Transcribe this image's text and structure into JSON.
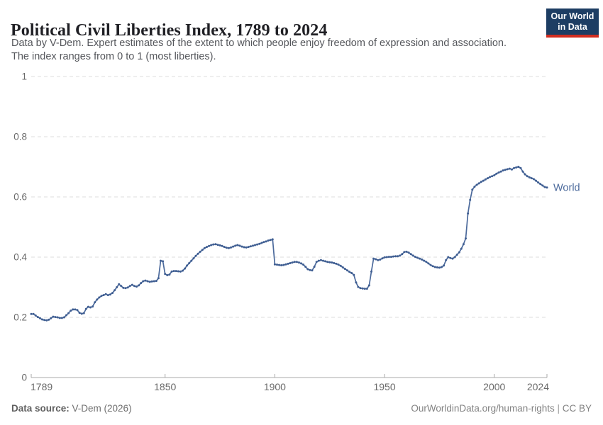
{
  "header": {
    "title": "Political Civil Liberties Index, 1789 to 2024",
    "subtitle_lines": [
      "Data by V-Dem. Expert estimates of the extent to which people enjoy freedom of expression and association.",
      "The index ranges from 0 to 1 (most liberties)."
    ]
  },
  "logo": {
    "line1": "Our World",
    "line2": "in Data",
    "bg_color": "#1d3d63",
    "stripe_color": "#d12d20"
  },
  "footer": {
    "source_label": "Data source:",
    "source_value": " V-Dem (2026)",
    "url": "OurWorldinData.org/human-rights",
    "separator": " | ",
    "license": "CC BY"
  },
  "chart_data": {
    "type": "line",
    "title": "Political Civil Liberties Index, 1789 to 2024",
    "xlabel": "",
    "ylabel": "",
    "grid": "horizontal-dashed",
    "legend_position": "end-of-line",
    "x": {
      "min": 1789,
      "max": 2024,
      "ticks": [
        1789,
        1850,
        1900,
        1950,
        2000,
        2024
      ]
    },
    "y": {
      "min": 0,
      "max": 1,
      "ticks": [
        0,
        0.2,
        0.4,
        0.6,
        0.8,
        1
      ],
      "tick_labels": [
        "0",
        "0.2",
        "0.4",
        "0.6",
        "0.8",
        "1"
      ]
    },
    "series": [
      {
        "name": "World",
        "color": "#4C6A9C",
        "marker_color": "#3F5E92",
        "start_year": 1789,
        "end_year": 2024,
        "values": [
          0.211,
          0.211,
          0.206,
          0.201,
          0.197,
          0.193,
          0.191,
          0.19,
          0.192,
          0.197,
          0.202,
          0.201,
          0.2,
          0.198,
          0.198,
          0.2,
          0.207,
          0.214,
          0.222,
          0.226,
          0.226,
          0.224,
          0.215,
          0.212,
          0.214,
          0.228,
          0.235,
          0.233,
          0.236,
          0.25,
          0.259,
          0.266,
          0.271,
          0.274,
          0.277,
          0.274,
          0.276,
          0.281,
          0.29,
          0.3,
          0.31,
          0.304,
          0.298,
          0.297,
          0.299,
          0.304,
          0.308,
          0.304,
          0.302,
          0.306,
          0.314,
          0.32,
          0.322,
          0.32,
          0.318,
          0.319,
          0.32,
          0.321,
          0.33,
          0.388,
          0.386,
          0.344,
          0.34,
          0.342,
          0.352,
          0.354,
          0.354,
          0.353,
          0.352,
          0.355,
          0.362,
          0.372,
          0.38,
          0.388,
          0.396,
          0.404,
          0.411,
          0.418,
          0.424,
          0.43,
          0.434,
          0.437,
          0.44,
          0.442,
          0.443,
          0.441,
          0.439,
          0.437,
          0.434,
          0.431,
          0.43,
          0.432,
          0.435,
          0.438,
          0.44,
          0.438,
          0.435,
          0.433,
          0.432,
          0.434,
          0.436,
          0.438,
          0.44,
          0.442,
          0.444,
          0.447,
          0.45,
          0.452,
          0.455,
          0.457,
          0.459,
          0.376,
          0.375,
          0.374,
          0.373,
          0.374,
          0.376,
          0.378,
          0.38,
          0.382,
          0.384,
          0.384,
          0.382,
          0.379,
          0.375,
          0.368,
          0.36,
          0.357,
          0.356,
          0.368,
          0.384,
          0.388,
          0.39,
          0.388,
          0.386,
          0.384,
          0.383,
          0.382,
          0.38,
          0.378,
          0.375,
          0.371,
          0.366,
          0.361,
          0.356,
          0.351,
          0.347,
          0.341,
          0.316,
          0.301,
          0.297,
          0.296,
          0.295,
          0.295,
          0.306,
          0.352,
          0.395,
          0.393,
          0.39,
          0.392,
          0.396,
          0.399,
          0.4,
          0.401,
          0.401,
          0.402,
          0.403,
          0.403,
          0.405,
          0.41,
          0.417,
          0.418,
          0.415,
          0.41,
          0.405,
          0.401,
          0.398,
          0.395,
          0.392,
          0.388,
          0.384,
          0.379,
          0.374,
          0.37,
          0.367,
          0.366,
          0.365,
          0.367,
          0.372,
          0.39,
          0.4,
          0.397,
          0.395,
          0.4,
          0.408,
          0.416,
          0.428,
          0.443,
          0.462,
          0.545,
          0.59,
          0.624,
          0.634,
          0.64,
          0.645,
          0.65,
          0.654,
          0.658,
          0.662,
          0.666,
          0.669,
          0.672,
          0.677,
          0.681,
          0.684,
          0.688,
          0.69,
          0.692,
          0.694,
          0.691,
          0.696,
          0.698,
          0.7,
          0.696,
          0.684,
          0.675,
          0.669,
          0.665,
          0.662,
          0.659,
          0.654,
          0.648,
          0.643,
          0.638,
          0.633,
          0.631
        ]
      }
    ]
  }
}
